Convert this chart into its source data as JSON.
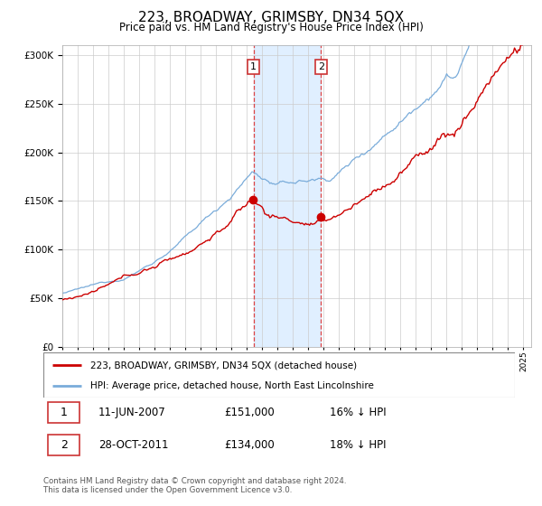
{
  "title": "223, BROADWAY, GRIMSBY, DN34 5QX",
  "subtitle": "Price paid vs. HM Land Registry's House Price Index (HPI)",
  "legend_line1": "223, BROADWAY, GRIMSBY, DN34 5QX (detached house)",
  "legend_line2": "HPI: Average price, detached house, North East Lincolnshire",
  "transaction1_date": "11-JUN-2007",
  "transaction1_price": 151000,
  "transaction1_label": "16% ↓ HPI",
  "transaction2_date": "28-OCT-2011",
  "transaction2_price": 134000,
  "transaction2_label": "18% ↓ HPI",
  "footer": "Contains HM Land Registry data © Crown copyright and database right 2024.\nThis data is licensed under the Open Government Licence v3.0.",
  "red_color": "#cc0000",
  "blue_color": "#7aacda",
  "shade_color": "#ddeeff",
  "ylim": [
    0,
    310000
  ],
  "yticks": [
    0,
    50000,
    100000,
    150000,
    200000,
    250000,
    300000
  ],
  "t1_year": 2007.44,
  "t2_year": 2011.83
}
